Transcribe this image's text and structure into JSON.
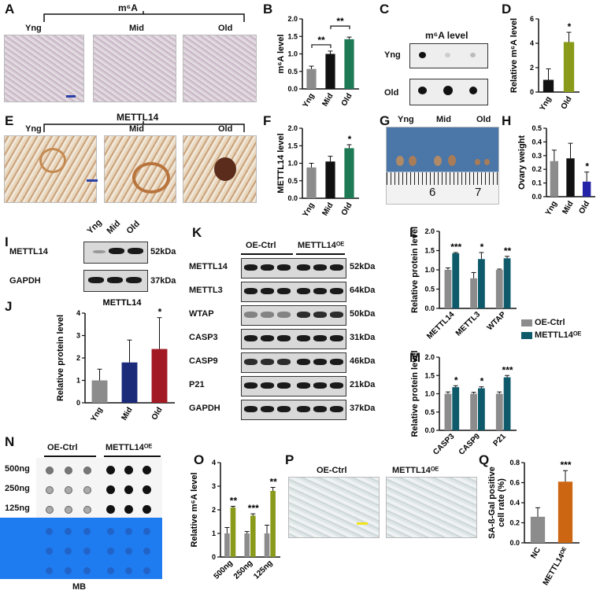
{
  "panels": {
    "A": "A",
    "B": "B",
    "C": "C",
    "D": "D",
    "E": "E",
    "F": "F",
    "G": "G",
    "H": "H",
    "I": "I",
    "J": "J",
    "K": "K",
    "L": "L",
    "M": "M",
    "N": "N",
    "O": "O",
    "P": "P",
    "Q": "Q"
  },
  "groups": {
    "yng": "Yng",
    "mid": "Mid",
    "old": "Old"
  },
  "panelA": {
    "title": "m⁶A"
  },
  "panelC": {
    "title": "m⁶A level",
    "rows": [
      "Yng",
      "Old"
    ]
  },
  "panelE": {
    "title": "METTL14"
  },
  "panelG": {
    "ruler_6": "6",
    "ruler_7": "7"
  },
  "panelI": {
    "rows": [
      "METTL14",
      "GAPDH"
    ],
    "sizes": [
      "52kDa",
      "37kDa"
    ]
  },
  "panelK": {
    "groups": [
      "OE-Ctrl",
      "METTL14ᴼᴱ"
    ],
    "rows": [
      "METTL14",
      "METTL3",
      "WTAP",
      "CASP3",
      "CASP9",
      "P21",
      "GAPDH"
    ],
    "sizes": [
      "52kDa",
      "64kDa",
      "50kDa",
      "31kDa",
      "46kDa",
      "21kDa",
      "37kDa"
    ]
  },
  "panelN": {
    "groups": [
      "OE-Ctrl",
      "METTL14ᴼᴱ"
    ],
    "rows": [
      "500ng",
      "250ng",
      "125ng"
    ],
    "mb_label": "MB"
  },
  "panelP": {
    "groups": [
      "OE-Ctrl",
      "METTL14ᴼᴱ"
    ]
  },
  "legend": {
    "ctrl": "OE-Ctrl",
    "oe": "METTL14ᴼᴱ",
    "ctrl_color": "#8c8c8c",
    "oe_color": "#0e5a6b"
  },
  "chart_data": [
    {
      "id": "B",
      "type": "bar",
      "categories": [
        "Yng",
        "Mid",
        "Old"
      ],
      "values": [
        0.57,
        1.0,
        1.42
      ],
      "errors": [
        0.08,
        0.08,
        0.06
      ],
      "colors": [
        "#8c8c8c",
        "#111111",
        "#1e7a55"
      ],
      "ylabel": "m⁶A level",
      "ylim": [
        0,
        2.0
      ],
      "yticks": [
        0.0,
        0.5,
        1.0,
        1.5,
        2.0
      ],
      "sig": [
        "",
        "",
        ""
      ],
      "brackets": [
        {
          "from": 0,
          "to": 1,
          "text": "**"
        },
        {
          "from": 1,
          "to": 2,
          "text": "**"
        }
      ]
    },
    {
      "id": "D",
      "type": "bar",
      "categories": [
        "Yng",
        "Old"
      ],
      "values": [
        1.0,
        4.1
      ],
      "errors": [
        0.9,
        0.8
      ],
      "colors": [
        "#111111",
        "#8a9a1a"
      ],
      "ylabel": "Relative m⁶A level",
      "ylim": [
        0,
        6
      ],
      "yticks": [
        0,
        2,
        4,
        6
      ],
      "sig": [
        "",
        "*"
      ]
    },
    {
      "id": "F",
      "type": "bar",
      "categories": [
        "Yng",
        "Mid",
        "Old"
      ],
      "values": [
        0.88,
        1.05,
        1.43
      ],
      "errors": [
        0.12,
        0.15,
        0.1
      ],
      "colors": [
        "#8c8c8c",
        "#111111",
        "#1e7a55"
      ],
      "ylabel": "METTL14 level",
      "ylim": [
        0,
        2.0
      ],
      "yticks": [
        0.0,
        0.5,
        1.0,
        1.5,
        2.0
      ],
      "sig": [
        "",
        "",
        "*"
      ]
    },
    {
      "id": "H",
      "type": "bar",
      "categories": [
        "Yng",
        "Mid",
        "Old"
      ],
      "values": [
        0.26,
        0.28,
        0.11
      ],
      "errors": [
        0.08,
        0.11,
        0.07
      ],
      "colors": [
        "#8c8c8c",
        "#111111",
        "#2424a8"
      ],
      "ylabel": "Ovary weight",
      "ylim": [
        0,
        0.5
      ],
      "yticks": [
        0.0,
        0.1,
        0.2,
        0.3,
        0.4,
        0.5
      ],
      "sig": [
        "",
        "",
        "*"
      ]
    },
    {
      "id": "J",
      "type": "bar",
      "title": "METTL14",
      "categories": [
        "Yng",
        "Mid",
        "Old"
      ],
      "values": [
        1.0,
        1.8,
        2.4
      ],
      "errors": [
        0.5,
        1.0,
        1.4
      ],
      "colors": [
        "#8c8c8c",
        "#1c2a7a",
        "#a11a24"
      ],
      "ylabel": "Relative protein level",
      "ylim": [
        0,
        4
      ],
      "yticks": [
        0,
        1,
        2,
        3,
        4
      ],
      "sig": [
        "",
        "",
        "*"
      ]
    },
    {
      "id": "L",
      "type": "bar",
      "categories": [
        "METTL14",
        "METTL3",
        "WTAP"
      ],
      "series": [
        {
          "values": [
            1.0,
            0.78,
            1.0
          ],
          "errors": [
            0.05,
            0.15,
            0.02
          ]
        },
        {
          "values": [
            1.43,
            1.28,
            1.3
          ],
          "errors": [
            0.02,
            0.17,
            0.05
          ]
        }
      ],
      "colors": [
        "#8c8c8c",
        "#0e5a6b"
      ],
      "ylabel": "Relative protein level",
      "ylim": [
        0,
        2.0
      ],
      "yticks": [
        0.0,
        0.5,
        1.0,
        1.5,
        2.0
      ],
      "sig": [
        "***",
        "*",
        "**"
      ]
    },
    {
      "id": "M",
      "type": "bar",
      "categories": [
        "CASP3",
        "CASP9",
        "P21"
      ],
      "series": [
        {
          "values": [
            1.0,
            1.0,
            1.0
          ],
          "errors": [
            0.05,
            0.04,
            0.05
          ]
        },
        {
          "values": [
            1.18,
            1.15,
            1.45
          ],
          "errors": [
            0.04,
            0.04,
            0.05
          ]
        }
      ],
      "colors": [
        "#8c8c8c",
        "#0e5a6b"
      ],
      "ylabel": "Relative protein level",
      "ylim": [
        0,
        2.0
      ],
      "yticks": [
        0.0,
        0.5,
        1.0,
        1.5,
        2.0
      ],
      "sig": [
        "*",
        "*",
        "***"
      ]
    },
    {
      "id": "O",
      "type": "bar",
      "categories": [
        "500ng",
        "250ng",
        "125ng"
      ],
      "series": [
        {
          "values": [
            1.0,
            1.0,
            1.0
          ],
          "errors": [
            0.25,
            0.08,
            0.35
          ]
        },
        {
          "values": [
            2.1,
            1.75,
            2.8
          ],
          "errors": [
            0.05,
            0.08,
            0.15
          ]
        }
      ],
      "colors": [
        "#8c8c8c",
        "#8a9a1a"
      ],
      "ylabel": "Relative m⁶A level",
      "ylim": [
        0,
        4
      ],
      "yticks": [
        0,
        1,
        2,
        3,
        4
      ],
      "sig": [
        "**",
        "***",
        "**"
      ]
    },
    {
      "id": "Q",
      "type": "bar",
      "categories": [
        "NC",
        "METTL14ᴼᴱ"
      ],
      "values": [
        0.26,
        0.61
      ],
      "errors": [
        0.09,
        0.11
      ],
      "colors": [
        "#8c8c8c",
        "#cc6613"
      ],
      "ylabel": "SA-ß-Gal positive\ncell rate (%)",
      "ylim": [
        0,
        0.8
      ],
      "yticks": [
        0.0,
        0.2,
        0.4,
        0.6,
        0.8
      ],
      "sig": [
        "",
        "***"
      ]
    }
  ]
}
